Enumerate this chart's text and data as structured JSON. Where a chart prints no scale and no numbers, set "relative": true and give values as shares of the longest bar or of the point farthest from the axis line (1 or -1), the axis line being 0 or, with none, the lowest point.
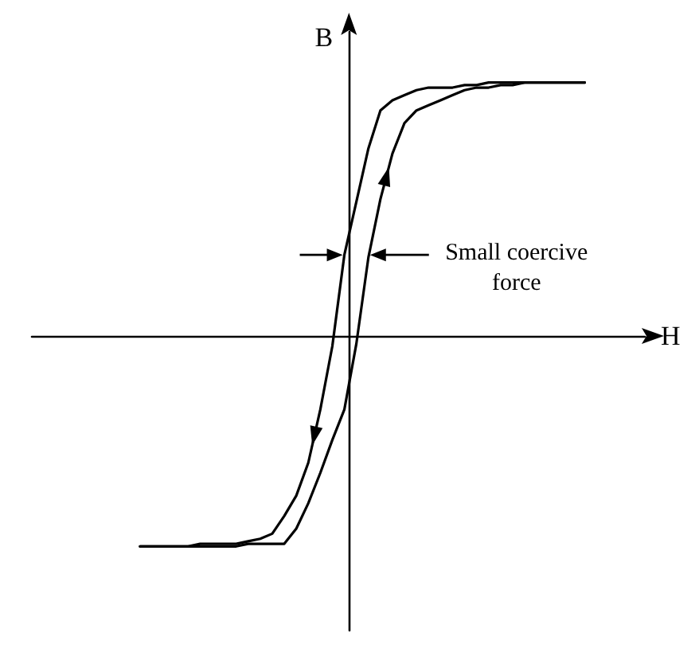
{
  "chart_data": {
    "type": "line",
    "relative": true,
    "xlabel": "H",
    "ylabel": "B",
    "tick_labels": false,
    "line_style": "solid",
    "annotations": [
      "Small coercive force"
    ],
    "categories": [
      null,
      null,
      null,
      null,
      null,
      null,
      null,
      null,
      null,
      null,
      null,
      null,
      null,
      null,
      null,
      null,
      null,
      null,
      null,
      null,
      null,
      null,
      null,
      null,
      null,
      null,
      null,
      null,
      null,
      null,
      null,
      null,
      null,
      null,
      null,
      null,
      null,
      null,
      null,
      null,
      null,
      null,
      null,
      null,
      null,
      null,
      null,
      null,
      null,
      null,
      null,
      null
    ],
    "series": [
      {
        "color": "#000000",
        "values": [
          null,
          null,
          null,
          null,
          null,
          null,
          null,
          null,
          null,
          -0.83,
          -0.83,
          -0.83,
          -0.83,
          -0.83,
          -0.82,
          -0.82,
          -0.82,
          -0.82,
          -0.81,
          -0.8,
          -0.78,
          -0.71,
          -0.63,
          -0.5,
          -0.29,
          -0.04,
          0.32,
          0.53,
          0.74,
          0.89,
          0.93,
          0.95,
          0.97,
          0.98,
          0.98,
          0.98,
          0.99,
          0.99,
          1,
          1,
          1,
          1,
          1,
          1,
          1,
          1,
          1,
          null,
          null,
          null,
          null,
          null
        ]
      },
      {
        "color": "#000000",
        "values": [
          null,
          null,
          null,
          null,
          null,
          null,
          null,
          null,
          null,
          -0.83,
          -0.83,
          -0.83,
          -0.83,
          -0.83,
          -0.83,
          -0.83,
          -0.83,
          -0.83,
          -0.82,
          -0.82,
          -0.82,
          -0.82,
          -0.76,
          -0.66,
          -0.54,
          -0.41,
          -0.29,
          -0.03,
          0.31,
          0.54,
          0.72,
          0.84,
          0.89,
          0.91,
          0.93,
          0.95,
          0.97,
          0.98,
          0.98,
          0.99,
          0.99,
          1,
          1,
          1,
          1,
          1,
          1,
          null,
          null,
          null,
          null,
          null
        ]
      }
    ]
  }
}
